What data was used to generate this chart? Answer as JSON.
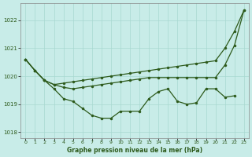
{
  "x": [
    0,
    1,
    2,
    3,
    4,
    5,
    6,
    7,
    8,
    9,
    10,
    11,
    12,
    13,
    14,
    15,
    16,
    17,
    18,
    19,
    20,
    21,
    22,
    23
  ],
  "line1": [
    1020.6,
    1020.2,
    1019.85,
    1019.7,
    1019.75,
    1019.8,
    1019.85,
    1019.9,
    1019.95,
    1020.0,
    1020.05,
    1020.1,
    1020.15,
    1020.2,
    1020.25,
    1020.3,
    1020.35,
    1020.4,
    1020.45,
    1020.5,
    1020.55,
    1021.0,
    1021.6,
    1022.35
  ],
  "line2": [
    1020.6,
    1020.2,
    1019.85,
    1019.7,
    1019.6,
    1019.55,
    1019.6,
    1019.65,
    1019.7,
    1019.75,
    1019.8,
    1019.85,
    1019.9,
    1019.95,
    1019.95,
    1019.95,
    1019.95,
    1019.95,
    1019.95,
    1019.95,
    1019.95,
    1020.4,
    1021.1,
    1022.35
  ],
  "line3": [
    1020.6,
    1020.2,
    1019.85,
    1019.55,
    1019.2,
    1019.1,
    1018.85,
    1018.6,
    1018.5,
    1018.5,
    1018.75,
    1018.75,
    1018.75,
    1019.2,
    1019.45,
    1019.55,
    1019.1,
    1019.0,
    1019.05,
    1019.55,
    1019.55,
    1019.25,
    1019.3,
    null
  ],
  "ylim": [
    1017.8,
    1022.6
  ],
  "yticks": [
    1018,
    1019,
    1020,
    1021,
    1022
  ],
  "xtick_labels": [
    "0",
    "1",
    "2",
    "3",
    "4",
    "5",
    "6",
    "7",
    "8",
    "9",
    "10",
    "11",
    "12",
    "13",
    "14",
    "15",
    "16",
    "17",
    "18",
    "19",
    "20",
    "21",
    "22",
    "23"
  ],
  "xlabel": "Graphe pression niveau de la mer (hPa)",
  "line_color": "#2d5a1b",
  "bg_color": "#c8ece8",
  "grid_color": "#a8d8d0",
  "text_color": "#2d5a1b"
}
